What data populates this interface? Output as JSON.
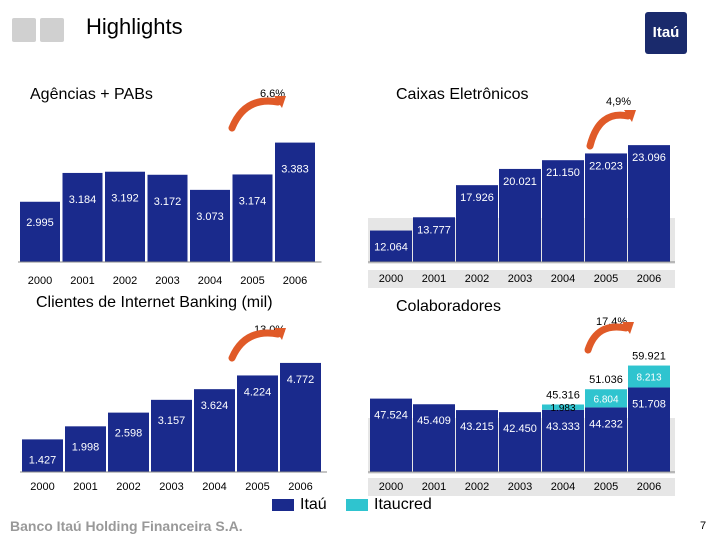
{
  "header": {
    "title": "Highlights",
    "logo_text": "Itaú"
  },
  "footer": {
    "company": "Banco Itaú Holding Financeira S.A.",
    "page": "7"
  },
  "legend": [
    {
      "label": "Itaú",
      "color": "#1a2a8c"
    },
    {
      "label": "Itaucred",
      "color": "#2fc4cf"
    }
  ],
  "chart_data": [
    {
      "type": "bar",
      "title": "Agências + PABs",
      "growth_label": "6,6%",
      "categories": [
        "2000",
        "2001",
        "2002",
        "2003",
        "2004",
        "2005",
        "2006"
      ],
      "values": [
        2995,
        3184,
        3192,
        3172,
        3073,
        3174,
        3383
      ],
      "value_labels": [
        "2.995",
        "3.184",
        "3.192",
        "3.172",
        "3.073",
        "3.174",
        "3.383"
      ],
      "color": "#1a2a8c"
    },
    {
      "type": "bar",
      "title": "Caixas Eletrônicos",
      "growth_label": "4,9%",
      "categories": [
        "2000",
        "2001",
        "2002",
        "2003",
        "2004",
        "2005",
        "2006"
      ],
      "values": [
        12064,
        13777,
        17926,
        20021,
        21150,
        22023,
        23096
      ],
      "value_labels": [
        "12.064",
        "13.777",
        "17.926",
        "20.021",
        "21.150",
        "22.023",
        "23.096"
      ],
      "color": "#1a2a8c"
    },
    {
      "type": "bar",
      "title": "Clientes de Internet Banking (mil)",
      "growth_label": "13,0%",
      "categories": [
        "2000",
        "2001",
        "2002",
        "2003",
        "2004",
        "2005",
        "2006"
      ],
      "values": [
        1427,
        1998,
        2598,
        3157,
        3624,
        4224,
        4772
      ],
      "value_labels": [
        "1.427",
        "1.998",
        "2.598",
        "3.157",
        "3.624",
        "4.224",
        "4.772"
      ],
      "color": "#1a2a8c"
    },
    {
      "type": "bar",
      "title": "Colaboradores",
      "growth_label": "17,4%",
      "categories": [
        "2000",
        "2001",
        "2002",
        "2003",
        "2004",
        "2005",
        "2006"
      ],
      "series": [
        {
          "name": "Itaú",
          "values": [
            47524,
            45409,
            43215,
            42450,
            43333,
            44232,
            51708
          ],
          "value_labels": [
            "47.524",
            "45.409",
            "43.215",
            "42.450",
            "43.333",
            "44.232",
            "51.708"
          ]
        },
        {
          "name": "Itaucred",
          "values": [
            0,
            0,
            0,
            0,
            1983,
            6804,
            8213
          ],
          "value_labels": [
            "",
            "",
            "",
            "",
            "1.983",
            "6.804",
            "8.213"
          ]
        }
      ],
      "totals": [
        null,
        null,
        null,
        null,
        45316,
        51036,
        59921
      ],
      "total_labels": [
        "",
        "",
        "",
        "",
        "45.316",
        "51.036",
        "59.921"
      ]
    }
  ]
}
